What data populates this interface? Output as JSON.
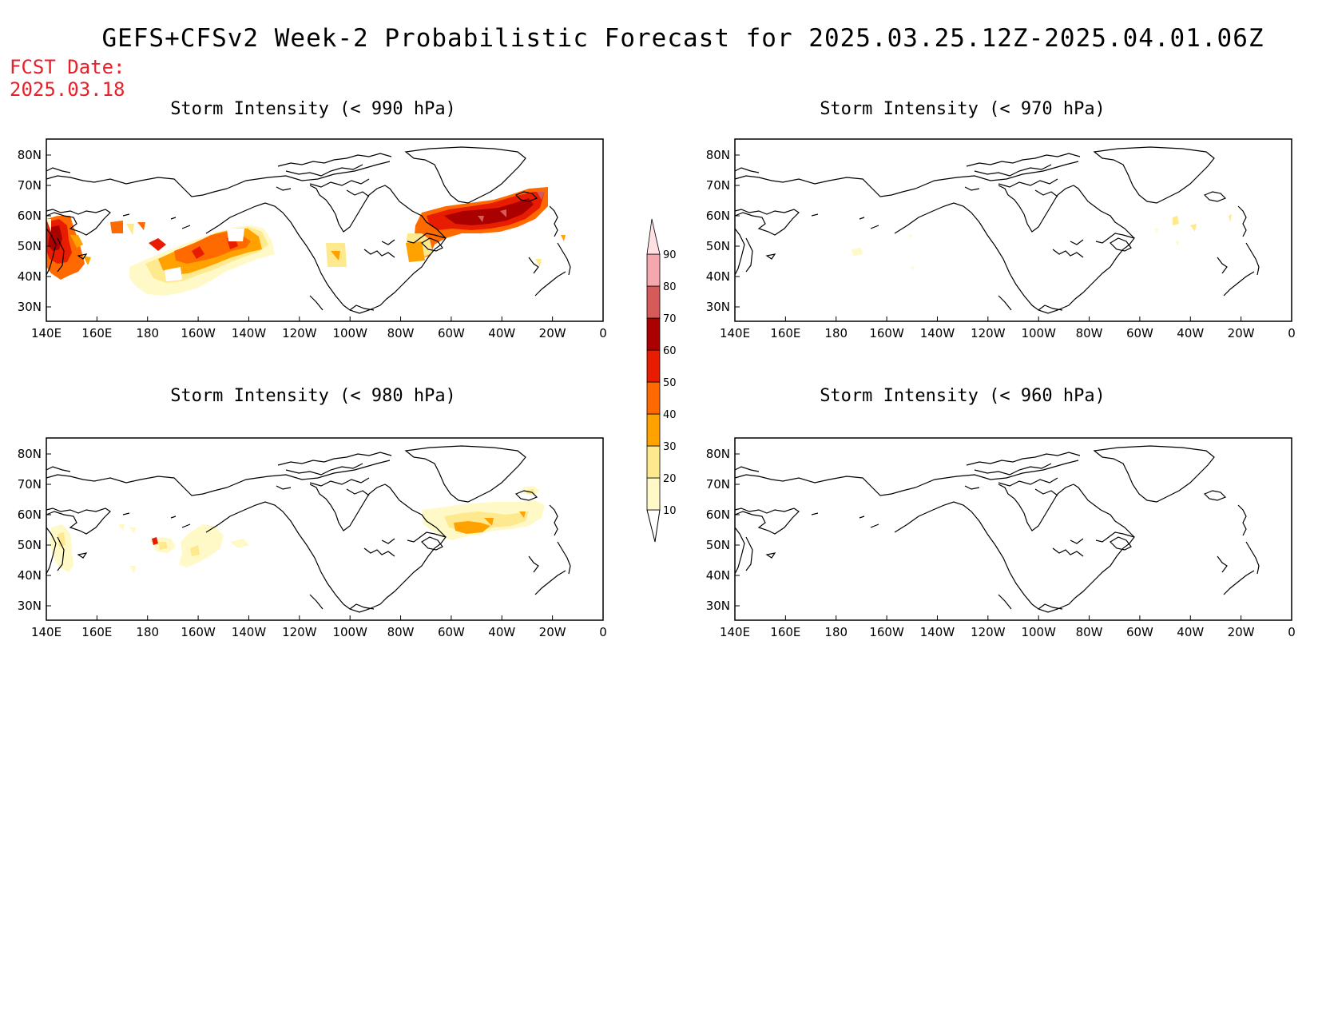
{
  "title": "GEFS+CFSv2 Week-2 Probabilistic Forecast for 2025.03.25.12Z-2025.04.01.06Z",
  "fcst_label": "FCST Date:",
  "fcst_date": "2025.03.18",
  "lon_ticks": [
    "140E",
    "160E",
    "180",
    "160W",
    "140W",
    "120W",
    "100W",
    "80W",
    "60W",
    "40W",
    "20W",
    "0"
  ],
  "lat_ticks": [
    "80N",
    "70N",
    "60N",
    "50N",
    "40N",
    "30N"
  ],
  "panels": [
    {
      "title": "Storm Intensity (< 990 hPa)"
    },
    {
      "title": "Storm Intensity (< 970 hPa)"
    },
    {
      "title": "Storm Intensity (< 980 hPa)"
    },
    {
      "title": "Storm Intensity (< 960 hPa)"
    }
  ],
  "colorbar": {
    "labels": [
      "10",
      "20",
      "30",
      "40",
      "50",
      "60",
      "70",
      "80",
      "90"
    ],
    "colors": [
      "#fff9c8",
      "#ffe98e",
      "#ffa200",
      "#ff6a00",
      "#e81c00",
      "#aa0000",
      "#d65a5a",
      "#f4a8ae",
      "#ffe0e3"
    ]
  }
}
